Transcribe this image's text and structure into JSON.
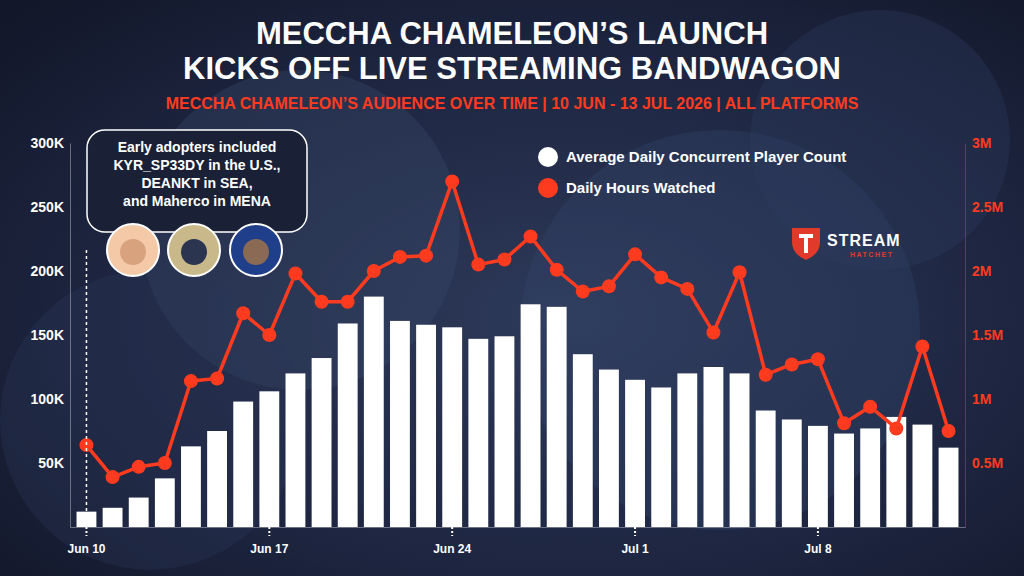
{
  "chart_data": {
    "type": "bar",
    "title": [
      "MECCHA CHAMELEON’S LAUNCH",
      "KICKS OFF LIVE STREAMING BANDWAGON"
    ],
    "subtitle": "MECCHA CHAMELEON’S AUDIENCE OVER TIME | 10 JUN - 13 JUL 2026 | ALL PLATFORMS",
    "annotation": [
      "Early adopters included",
      "KYR_SP33DY in the U.S.,",
      "DEANKT in SEA,",
      "and Maherco in MENA"
    ],
    "logo": [
      "STREAM",
      "HATCHET"
    ],
    "categories": [
      "Jun 10",
      null,
      null,
      null,
      null,
      null,
      null,
      "Jun 17",
      null,
      null,
      null,
      null,
      null,
      null,
      "Jun 24",
      null,
      null,
      null,
      null,
      null,
      null,
      "Jul 1",
      null,
      null,
      null,
      null,
      null,
      null,
      "Jul 8",
      null,
      null,
      null,
      null,
      null
    ],
    "series": [
      {
        "name": "Average Daily Concurrent Player Count",
        "type": "bar",
        "color": "#ffffff",
        "values": [
          12000,
          15000,
          23000,
          38000,
          63000,
          75000,
          98000,
          106000,
          120000,
          132000,
          159000,
          180000,
          161000,
          158000,
          156000,
          147000,
          149000,
          174000,
          172000,
          135000,
          123000,
          115000,
          109000,
          120000,
          125000,
          120000,
          91000,
          84000,
          79000,
          73000,
          77000,
          86000,
          80000,
          62000
        ]
      },
      {
        "name": "Daily Hours Watched",
        "type": "line",
        "axis": "y2",
        "color": "#ff3b1f",
        "marker": "circle",
        "values": [
          640000,
          390000,
          470000,
          500000,
          1140000,
          1160000,
          1670000,
          1500000,
          1980000,
          1760000,
          1760000,
          2000000,
          2110000,
          2120000,
          2700000,
          2050000,
          2090000,
          2270000,
          2010000,
          1840000,
          1880000,
          2130000,
          1950000,
          1860000,
          1520000,
          1990000,
          1190000,
          1270000,
          1310000,
          810000,
          940000,
          770000,
          1410000,
          750000
        ]
      }
    ],
    "ylim": [
      0,
      300000
    ],
    "yticks": [
      {
        "value": 50000,
        "label": "50K"
      },
      {
        "value": 100000,
        "label": "100K"
      },
      {
        "value": 150000,
        "label": "150K"
      },
      {
        "value": 200000,
        "label": "200K"
      },
      {
        "value": 250000,
        "label": "250K"
      },
      {
        "value": 300000,
        "label": "300K"
      }
    ],
    "y2lim": [
      0,
      3000000
    ],
    "y2ticks": [
      {
        "value": 500000,
        "label": "0.5M"
      },
      {
        "value": 1000000,
        "label": "1M"
      },
      {
        "value": 1500000,
        "label": "1.5M"
      },
      {
        "value": 2000000,
        "label": "2M"
      },
      {
        "value": 2500000,
        "label": "2.5M"
      },
      {
        "value": 3000000,
        "label": "3M"
      }
    ],
    "grid": false,
    "legend": "top-right"
  }
}
